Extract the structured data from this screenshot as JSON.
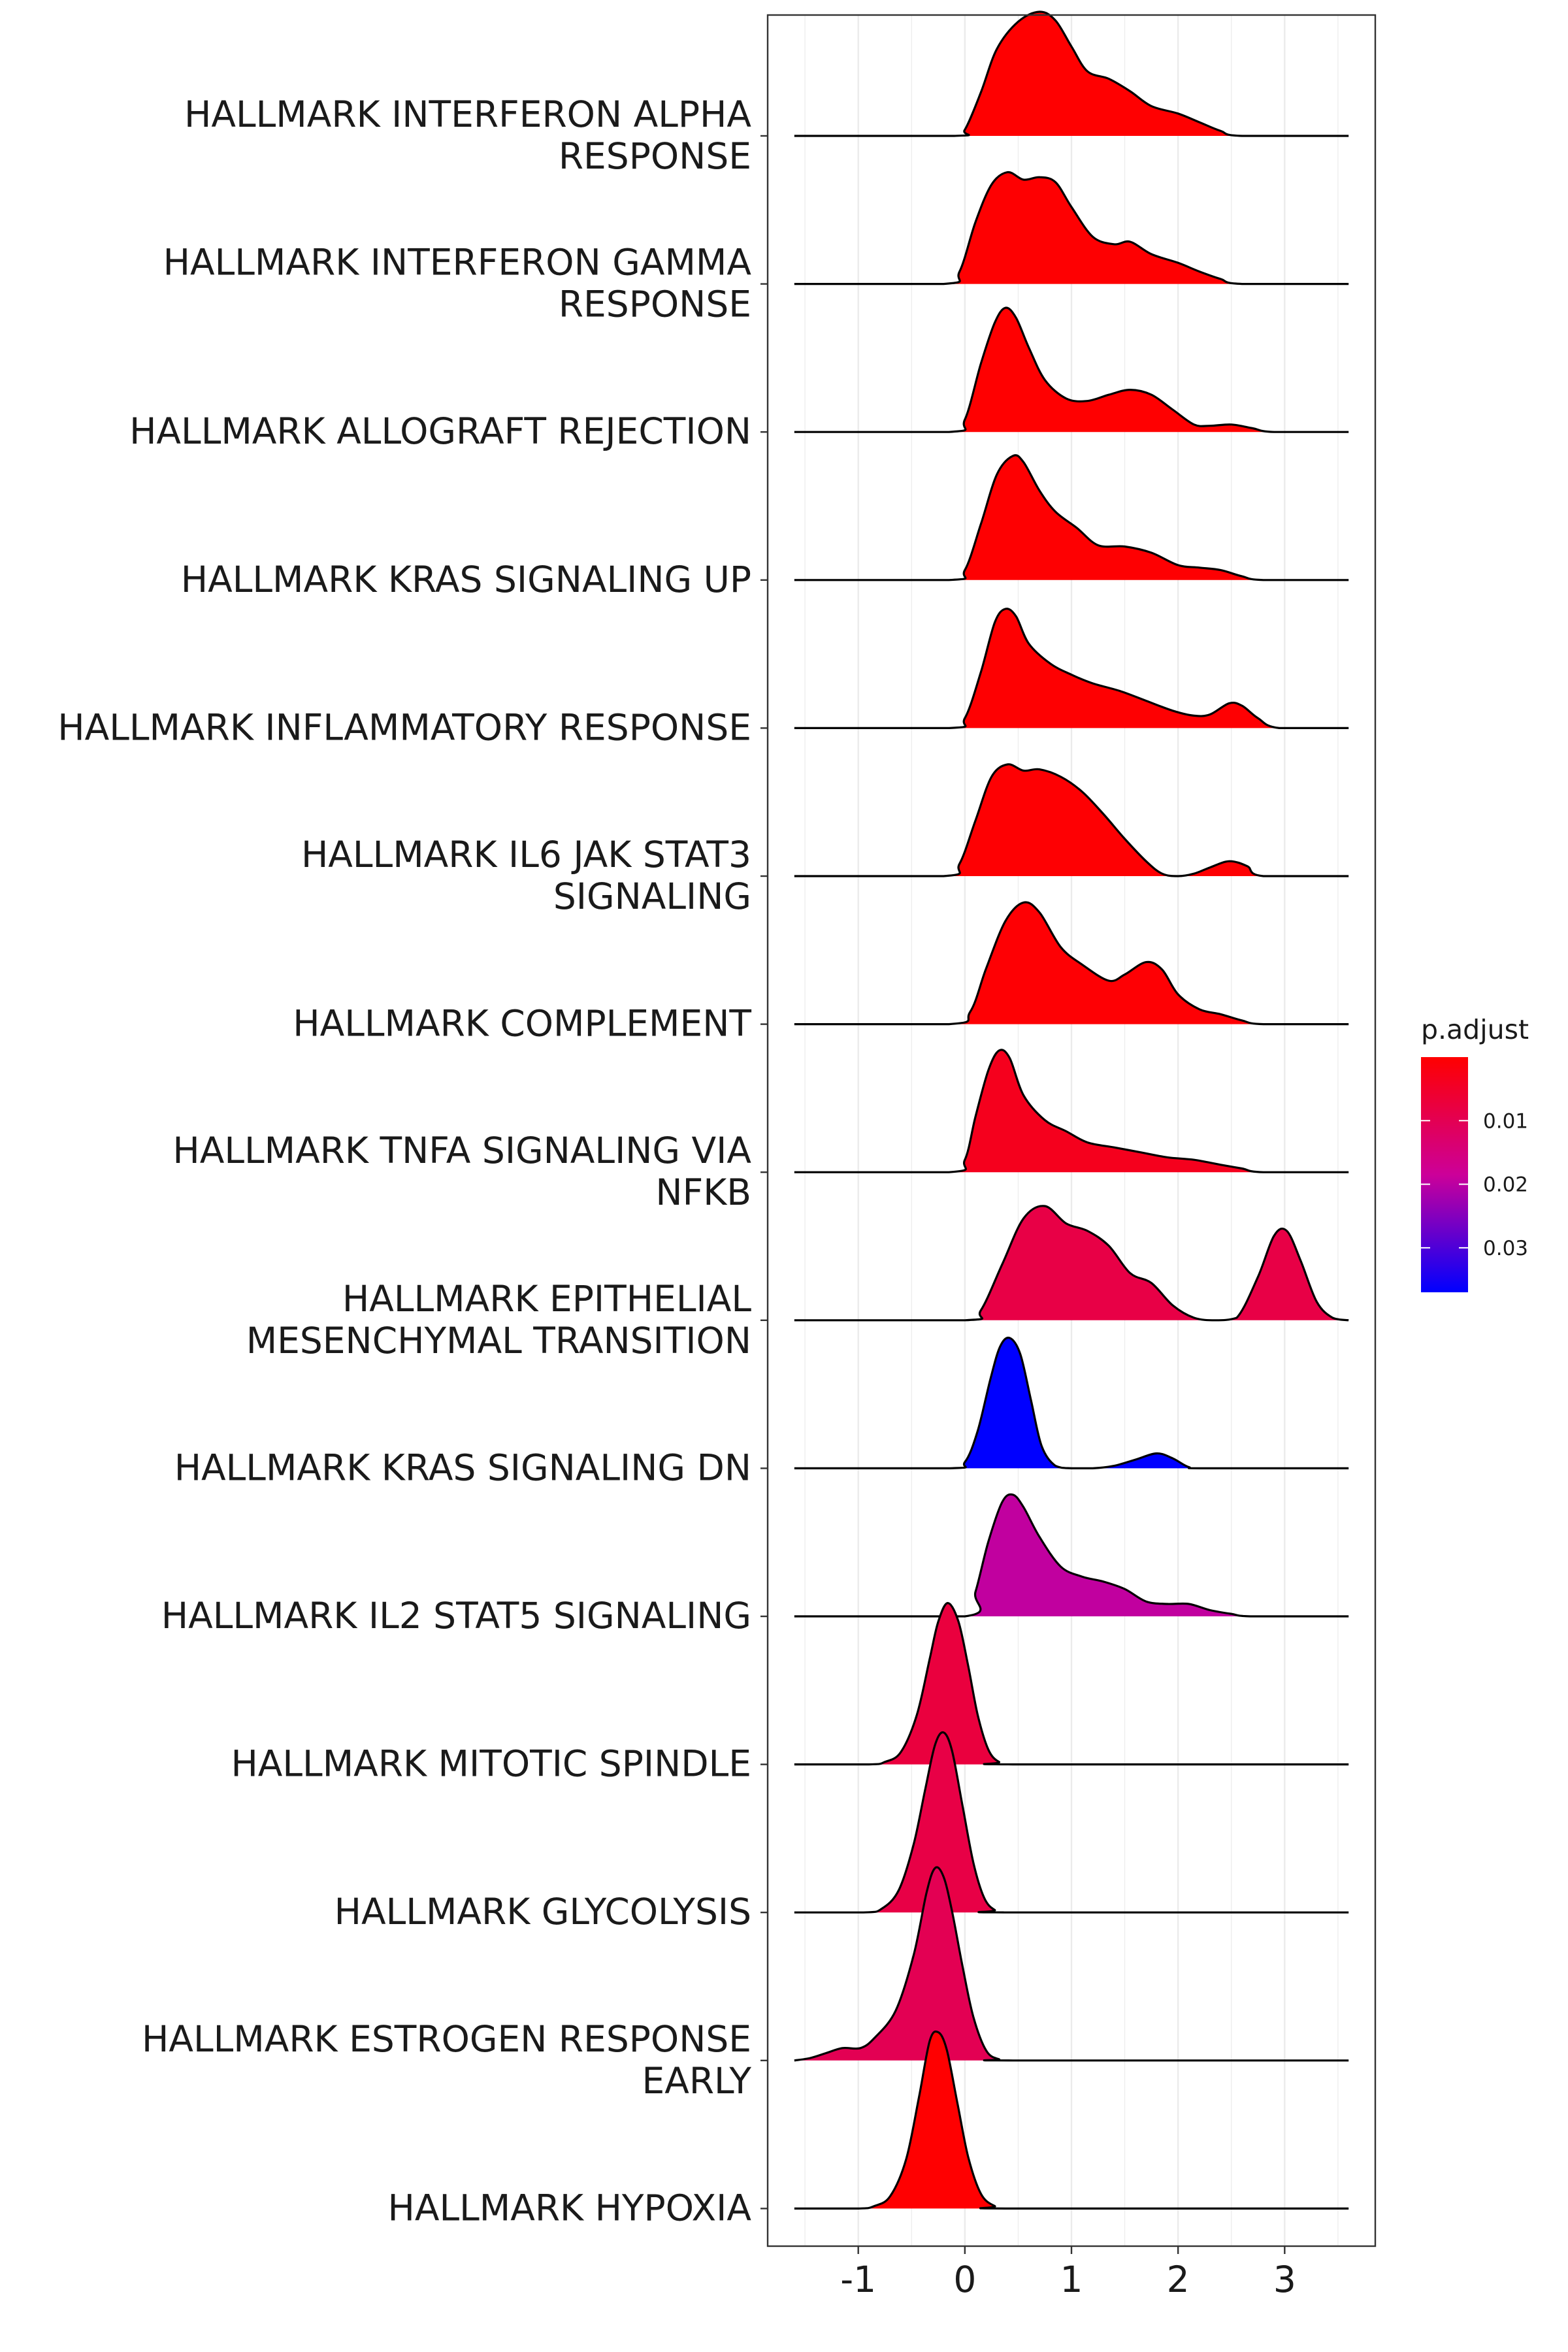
{
  "chart_data": {
    "type": "ridgeline",
    "title": "",
    "xlabel": "",
    "ylabel": "",
    "xlim": [
      -1.85,
      3.85
    ],
    "x_ticks": [
      -1,
      0,
      1,
      2,
      3
    ],
    "x_tick_labels": [
      "-1",
      "0",
      "1",
      "2",
      "3"
    ],
    "grid": true,
    "legend": {
      "title": "p.adjust",
      "placement": "right",
      "colors": [
        "#FF0000",
        "#0000FF"
      ],
      "range": [
        0.0,
        0.037
      ],
      "ticks": [
        0.01,
        0.02,
        0.03
      ],
      "tick_labels": [
        "0.01",
        "0.02",
        "0.03"
      ]
    },
    "series": [
      {
        "label_lines": [
          "HALLMARK INTERFERON ALPHA",
          "RESPONSE"
        ],
        "p_adjust": 0.0001,
        "density": [
          [
            -1.6,
            0
          ],
          [
            -0.1,
            0
          ],
          [
            0.0,
            0.05
          ],
          [
            0.15,
            0.35
          ],
          [
            0.3,
            0.7
          ],
          [
            0.5,
            0.92
          ],
          [
            0.7,
            1.0
          ],
          [
            0.85,
            0.93
          ],
          [
            1.0,
            0.72
          ],
          [
            1.15,
            0.52
          ],
          [
            1.35,
            0.46
          ],
          [
            1.55,
            0.36
          ],
          [
            1.75,
            0.24
          ],
          [
            2.0,
            0.18
          ],
          [
            2.2,
            0.11
          ],
          [
            2.4,
            0.04
          ],
          [
            2.6,
            0
          ],
          [
            3.6,
            0
          ]
        ]
      },
      {
        "label_lines": [
          "HALLMARK INTERFERON GAMMA",
          "RESPONSE"
        ],
        "p_adjust": 0.0002,
        "density": [
          [
            -1.6,
            0
          ],
          [
            -0.2,
            0
          ],
          [
            -0.05,
            0.1
          ],
          [
            0.1,
            0.5
          ],
          [
            0.25,
            0.8
          ],
          [
            0.4,
            0.9
          ],
          [
            0.55,
            0.84
          ],
          [
            0.7,
            0.86
          ],
          [
            0.85,
            0.82
          ],
          [
            1.0,
            0.62
          ],
          [
            1.2,
            0.38
          ],
          [
            1.4,
            0.32
          ],
          [
            1.55,
            0.34
          ],
          [
            1.75,
            0.24
          ],
          [
            2.0,
            0.17
          ],
          [
            2.2,
            0.1
          ],
          [
            2.4,
            0.04
          ],
          [
            2.6,
            0
          ],
          [
            3.6,
            0
          ]
        ]
      },
      {
        "label_lines": [
          "HALLMARK ALLOGRAFT REJECTION"
        ],
        "p_adjust": 0.0001,
        "density": [
          [
            -1.6,
            0
          ],
          [
            -0.15,
            0
          ],
          [
            0.0,
            0.1
          ],
          [
            0.15,
            0.55
          ],
          [
            0.28,
            0.88
          ],
          [
            0.38,
            1.0
          ],
          [
            0.48,
            0.92
          ],
          [
            0.6,
            0.68
          ],
          [
            0.75,
            0.42
          ],
          [
            0.95,
            0.27
          ],
          [
            1.15,
            0.25
          ],
          [
            1.35,
            0.3
          ],
          [
            1.55,
            0.34
          ],
          [
            1.75,
            0.3
          ],
          [
            1.95,
            0.18
          ],
          [
            2.15,
            0.06
          ],
          [
            2.3,
            0.05
          ],
          [
            2.5,
            0.06
          ],
          [
            2.7,
            0.03
          ],
          [
            2.9,
            0
          ],
          [
            3.6,
            0
          ]
        ]
      },
      {
        "label_lines": [
          "HALLMARK KRAS SIGNALING UP"
        ],
        "p_adjust": 0.0003,
        "density": [
          [
            -1.6,
            0
          ],
          [
            -0.15,
            0
          ],
          [
            0.0,
            0.08
          ],
          [
            0.15,
            0.45
          ],
          [
            0.3,
            0.85
          ],
          [
            0.45,
            1.0
          ],
          [
            0.55,
            0.95
          ],
          [
            0.7,
            0.72
          ],
          [
            0.85,
            0.55
          ],
          [
            1.05,
            0.42
          ],
          [
            1.25,
            0.28
          ],
          [
            1.5,
            0.27
          ],
          [
            1.75,
            0.22
          ],
          [
            2.0,
            0.12
          ],
          [
            2.2,
            0.1
          ],
          [
            2.4,
            0.08
          ],
          [
            2.6,
            0.03
          ],
          [
            2.8,
            0
          ],
          [
            3.6,
            0
          ]
        ]
      },
      {
        "label_lines": [
          "HALLMARK INFLAMMATORY RESPONSE"
        ],
        "p_adjust": 0.0003,
        "density": [
          [
            -1.6,
            0
          ],
          [
            -0.15,
            0
          ],
          [
            0.0,
            0.08
          ],
          [
            0.15,
            0.45
          ],
          [
            0.28,
            0.85
          ],
          [
            0.38,
            0.96
          ],
          [
            0.48,
            0.9
          ],
          [
            0.6,
            0.68
          ],
          [
            0.8,
            0.52
          ],
          [
            1.0,
            0.43
          ],
          [
            1.2,
            0.36
          ],
          [
            1.45,
            0.3
          ],
          [
            1.7,
            0.22
          ],
          [
            1.95,
            0.14
          ],
          [
            2.15,
            0.1
          ],
          [
            2.3,
            0.11
          ],
          [
            2.48,
            0.2
          ],
          [
            2.6,
            0.18
          ],
          [
            2.75,
            0.08
          ],
          [
            2.95,
            0
          ],
          [
            3.6,
            0
          ]
        ]
      },
      {
        "label_lines": [
          "HALLMARK IL6 JAK STAT3",
          "SIGNALING"
        ],
        "p_adjust": 0.0004,
        "density": [
          [
            -1.6,
            0
          ],
          [
            -0.2,
            0
          ],
          [
            -0.05,
            0.1
          ],
          [
            0.1,
            0.45
          ],
          [
            0.25,
            0.8
          ],
          [
            0.4,
            0.9
          ],
          [
            0.55,
            0.85
          ],
          [
            0.7,
            0.86
          ],
          [
            0.9,
            0.8
          ],
          [
            1.1,
            0.68
          ],
          [
            1.3,
            0.5
          ],
          [
            1.5,
            0.3
          ],
          [
            1.7,
            0.12
          ],
          [
            1.85,
            0.02
          ],
          [
            2.0,
            0
          ],
          [
            2.15,
            0.02
          ],
          [
            2.3,
            0.07
          ],
          [
            2.48,
            0.12
          ],
          [
            2.65,
            0.08
          ],
          [
            2.8,
            0
          ],
          [
            3.6,
            0
          ]
        ]
      },
      {
        "label_lines": [
          "HALLMARK COMPLEMENT"
        ],
        "p_adjust": 0.0005,
        "density": [
          [
            -1.6,
            0
          ],
          [
            -0.15,
            0
          ],
          [
            0.05,
            0.1
          ],
          [
            0.2,
            0.45
          ],
          [
            0.38,
            0.83
          ],
          [
            0.55,
            0.98
          ],
          [
            0.7,
            0.9
          ],
          [
            0.9,
            0.62
          ],
          [
            1.1,
            0.48
          ],
          [
            1.35,
            0.35
          ],
          [
            1.5,
            0.4
          ],
          [
            1.7,
            0.5
          ],
          [
            1.85,
            0.44
          ],
          [
            2.0,
            0.24
          ],
          [
            2.2,
            0.12
          ],
          [
            2.4,
            0.08
          ],
          [
            2.6,
            0.03
          ],
          [
            2.8,
            0
          ],
          [
            3.6,
            0
          ]
        ]
      },
      {
        "label_lines": [
          "HALLMARK TNFA SIGNALING VIA",
          "NFKB"
        ],
        "p_adjust": 0.0035,
        "density": [
          [
            -1.6,
            0
          ],
          [
            -0.15,
            0
          ],
          [
            0.0,
            0.1
          ],
          [
            0.1,
            0.45
          ],
          [
            0.22,
            0.82
          ],
          [
            0.32,
            0.98
          ],
          [
            0.42,
            0.92
          ],
          [
            0.55,
            0.62
          ],
          [
            0.75,
            0.42
          ],
          [
            0.95,
            0.33
          ],
          [
            1.15,
            0.24
          ],
          [
            1.4,
            0.2
          ],
          [
            1.65,
            0.16
          ],
          [
            1.9,
            0.12
          ],
          [
            2.15,
            0.1
          ],
          [
            2.4,
            0.06
          ],
          [
            2.6,
            0.03
          ],
          [
            2.8,
            0
          ],
          [
            3.6,
            0
          ]
        ]
      },
      {
        "label_lines": [
          "HALLMARK EPITHELIAL",
          "MESENCHYMAL TRANSITION"
        ],
        "p_adjust": 0.0085,
        "density": [
          [
            -1.6,
            0
          ],
          [
            0.0,
            0
          ],
          [
            0.15,
            0.08
          ],
          [
            0.35,
            0.45
          ],
          [
            0.55,
            0.82
          ],
          [
            0.75,
            0.92
          ],
          [
            0.95,
            0.78
          ],
          [
            1.15,
            0.72
          ],
          [
            1.35,
            0.6
          ],
          [
            1.55,
            0.38
          ],
          [
            1.75,
            0.3
          ],
          [
            1.95,
            0.12
          ],
          [
            2.15,
            0.02
          ],
          [
            2.35,
            0
          ],
          [
            2.55,
            0.02
          ],
          [
            2.75,
            0.35
          ],
          [
            2.9,
            0.68
          ],
          [
            3.02,
            0.72
          ],
          [
            3.15,
            0.48
          ],
          [
            3.3,
            0.15
          ],
          [
            3.45,
            0.02
          ],
          [
            3.6,
            0
          ]
        ]
      },
      {
        "label_lines": [
          "HALLMARK KRAS SIGNALING DN"
        ],
        "p_adjust": 0.037,
        "density": [
          [
            -1.6,
            0
          ],
          [
            -0.15,
            0
          ],
          [
            0.0,
            0.05
          ],
          [
            0.12,
            0.3
          ],
          [
            0.24,
            0.72
          ],
          [
            0.33,
            0.98
          ],
          [
            0.42,
            1.05
          ],
          [
            0.52,
            0.92
          ],
          [
            0.62,
            0.55
          ],
          [
            0.72,
            0.18
          ],
          [
            0.85,
            0.02
          ],
          [
            1.0,
            0
          ],
          [
            1.2,
            0
          ],
          [
            1.4,
            0.02
          ],
          [
            1.6,
            0.07
          ],
          [
            1.8,
            0.12
          ],
          [
            1.95,
            0.08
          ],
          [
            2.1,
            0.01
          ],
          [
            2.25,
            0
          ],
          [
            3.6,
            0
          ]
        ]
      },
      {
        "label_lines": [
          "HALLMARK IL2 STAT5 SIGNALING"
        ],
        "p_adjust": 0.0195,
        "density": [
          [
            -1.6,
            0
          ],
          [
            0.0,
            0
          ],
          [
            0.1,
            0.2
          ],
          [
            0.22,
            0.6
          ],
          [
            0.35,
            0.92
          ],
          [
            0.45,
            0.98
          ],
          [
            0.55,
            0.88
          ],
          [
            0.7,
            0.64
          ],
          [
            0.9,
            0.4
          ],
          [
            1.1,
            0.32
          ],
          [
            1.3,
            0.28
          ],
          [
            1.5,
            0.22
          ],
          [
            1.7,
            0.12
          ],
          [
            1.9,
            0.1
          ],
          [
            2.1,
            0.1
          ],
          [
            2.3,
            0.05
          ],
          [
            2.5,
            0.02
          ],
          [
            2.7,
            0
          ],
          [
            3.6,
            0
          ]
        ]
      },
      {
        "label_lines": [
          "HALLMARK MITOTIC SPINDLE"
        ],
        "p_adjust": 0.0075,
        "density": [
          [
            -1.6,
            0
          ],
          [
            -0.9,
            0
          ],
          [
            -0.75,
            0.02
          ],
          [
            -0.6,
            0.1
          ],
          [
            -0.45,
            0.4
          ],
          [
            -0.33,
            0.85
          ],
          [
            -0.25,
            1.15
          ],
          [
            -0.16,
            1.3
          ],
          [
            -0.06,
            1.15
          ],
          [
            0.03,
            0.8
          ],
          [
            0.12,
            0.4
          ],
          [
            0.22,
            0.12
          ],
          [
            0.32,
            0.02
          ],
          [
            0.45,
            0
          ],
          [
            3.6,
            0
          ]
        ]
      },
      {
        "label_lines": [
          "HALLMARK GLYCOLYSIS"
        ],
        "p_adjust": 0.0085,
        "density": [
          [
            -1.6,
            0
          ],
          [
            -0.95,
            0
          ],
          [
            -0.78,
            0.03
          ],
          [
            -0.62,
            0.18
          ],
          [
            -0.48,
            0.55
          ],
          [
            -0.37,
            1.0
          ],
          [
            -0.28,
            1.35
          ],
          [
            -0.2,
            1.45
          ],
          [
            -0.12,
            1.3
          ],
          [
            -0.02,
            0.85
          ],
          [
            0.08,
            0.4
          ],
          [
            0.18,
            0.12
          ],
          [
            0.28,
            0.02
          ],
          [
            0.4,
            0
          ],
          [
            3.6,
            0
          ]
        ]
      },
      {
        "label_lines": [
          "HALLMARK ESTROGEN RESPONSE",
          "EARLY"
        ],
        "p_adjust": 0.01,
        "density": [
          [
            -1.6,
            0
          ],
          [
            -1.45,
            0.02
          ],
          [
            -1.3,
            0.06
          ],
          [
            -1.15,
            0.1
          ],
          [
            -0.98,
            0.1
          ],
          [
            -0.85,
            0.18
          ],
          [
            -0.65,
            0.4
          ],
          [
            -0.48,
            0.85
          ],
          [
            -0.36,
            1.35
          ],
          [
            -0.28,
            1.55
          ],
          [
            -0.2,
            1.48
          ],
          [
            -0.12,
            1.2
          ],
          [
            -0.02,
            0.75
          ],
          [
            0.08,
            0.35
          ],
          [
            0.2,
            0.08
          ],
          [
            0.32,
            0.01
          ],
          [
            0.45,
            0
          ],
          [
            3.6,
            0
          ]
        ]
      },
      {
        "label_lines": [
          "HALLMARK HYPOXIA"
        ],
        "p_adjust": 0.0001,
        "density": [
          [
            -1.6,
            0
          ],
          [
            -1.0,
            0
          ],
          [
            -0.85,
            0.02
          ],
          [
            -0.7,
            0.1
          ],
          [
            -0.55,
            0.4
          ],
          [
            -0.43,
            0.9
          ],
          [
            -0.33,
            1.35
          ],
          [
            -0.25,
            1.42
          ],
          [
            -0.17,
            1.28
          ],
          [
            -0.07,
            0.85
          ],
          [
            0.03,
            0.42
          ],
          [
            0.15,
            0.12
          ],
          [
            0.28,
            0.02
          ],
          [
            0.42,
            0
          ],
          [
            3.6,
            0
          ]
        ]
      }
    ]
  }
}
